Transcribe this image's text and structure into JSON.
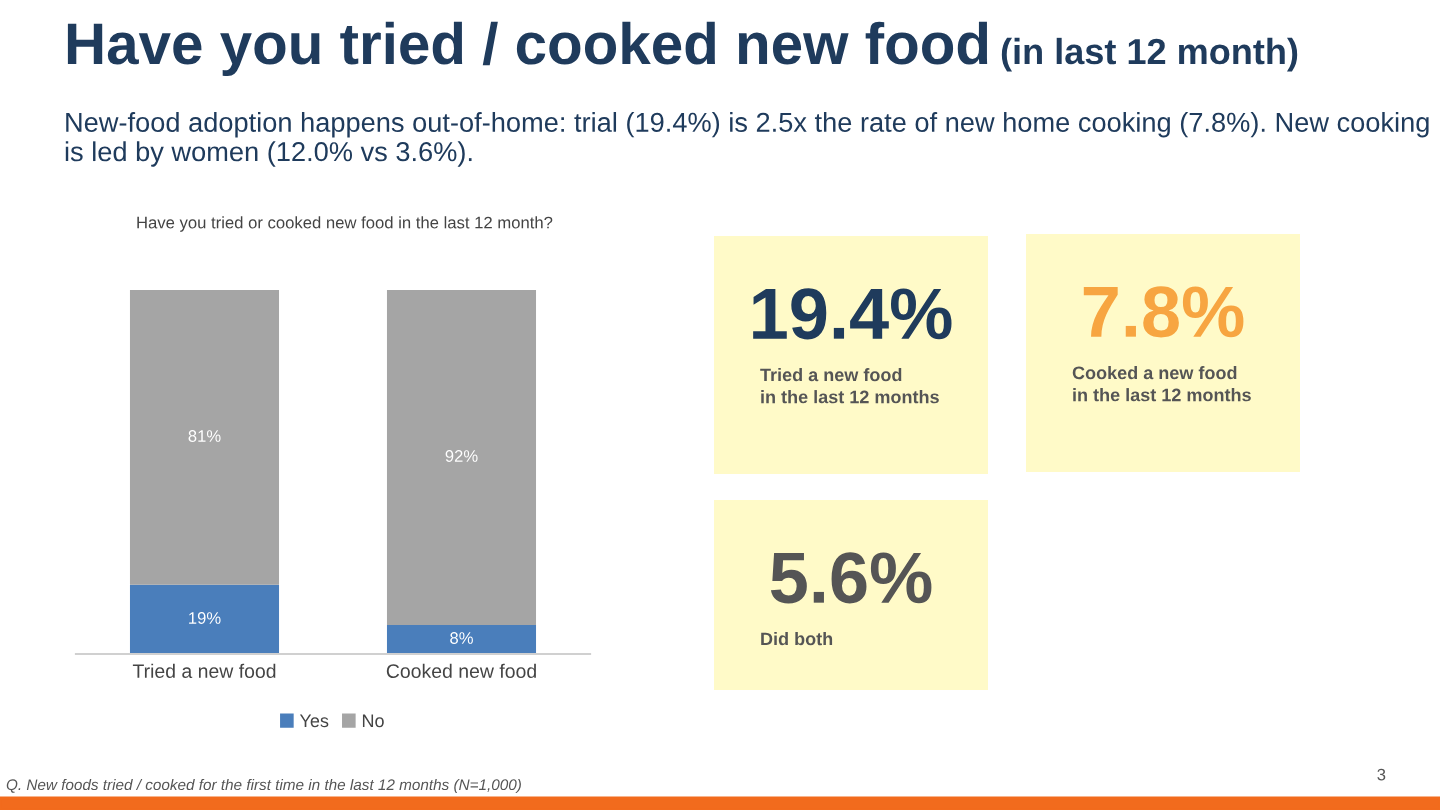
{
  "chart_data": [
    {
      "type": "other",
      "title": "Have you tried / cooked new food (in last 12 month)",
      "subtitle": "New-food adoption happens out-of-home: trial (19.4%) is 2.5x the rate of new home cooking (7.8%). New cooking is led by women (12.0% vs 3.6%).",
      "annotations": [
        "Q. New foods tried / cooked for the first time in the last 12 months (N=1,000)",
        "3"
      ]
    },
    {
      "type": "bar",
      "title": "Have you tried or cooked new food in the last 12 month?",
      "categories": [
        "Tried a new food",
        "Cooked new food"
      ],
      "stacked": true,
      "ylim": [
        0,
        100
      ],
      "tick_labels": "x",
      "data_labels": true,
      "legend": "bottom",
      "series": [
        {
          "name": "Yes",
          "color": "#4a7ebb",
          "values": [
            19,
            8
          ],
          "value_labels": [
            "19%",
            "8%"
          ]
        },
        {
          "name": "No",
          "color": "#a5a5a5",
          "values": [
            81,
            92
          ],
          "value_labels": [
            "81%",
            "92%"
          ]
        }
      ]
    },
    {
      "type": "other",
      "title": "19.4%",
      "subtitle": "Tried a new food\nin the last 12 months",
      "color": "#1f3b5c"
    },
    {
      "type": "other",
      "title": "7.8%",
      "subtitle": "Cooked a new food\nin the last 12 months",
      "color": "#f7a541"
    },
    {
      "type": "other",
      "title": "5.6%",
      "subtitle": "Did both",
      "color": "#555555"
    }
  ]
}
